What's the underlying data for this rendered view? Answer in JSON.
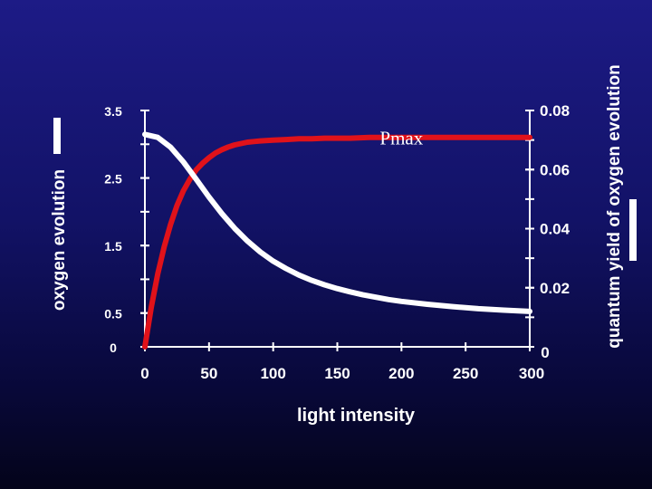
{
  "chart_data": {
    "type": "line",
    "xlabel": "light intensity",
    "ylabel_left": "oxygen evolution",
    "ylabel_right": "quantum yield of oxygen evolution",
    "x_ticks": [
      "0",
      "50",
      "100",
      "150",
      "200",
      "250",
      "300"
    ],
    "xlim": [
      0,
      300
    ],
    "left_ticks": [
      {
        "label": "3.5",
        "value": 3.5
      },
      {
        "label": "2.5",
        "value": 2.5
      },
      {
        "label": "1.5",
        "value": 1.5
      },
      {
        "label": "0.5",
        "value": 0.5
      },
      {
        "label": "0",
        "value": 0
      }
    ],
    "left_ylim": [
      0,
      3.5
    ],
    "right_ticks": [
      {
        "label": "0.08",
        "value": 0.08
      },
      {
        "label": "0.06",
        "value": 0.06
      },
      {
        "label": "0.04",
        "value": 0.04
      },
      {
        "label": "0.02",
        "value": 0.02
      },
      {
        "label": "0",
        "value": 0
      }
    ],
    "right_ylim": [
      0,
      0.08
    ],
    "annotation": {
      "text": "Pmax",
      "x": 200,
      "y": 3.0
    },
    "series": [
      {
        "color": "#e0121a",
        "axis": "left",
        "x": [
          0,
          5,
          10,
          15,
          20,
          25,
          30,
          35,
          40,
          45,
          50,
          55,
          60,
          65,
          70,
          75,
          80,
          85,
          90,
          100,
          110,
          120,
          130,
          140,
          150,
          160,
          175,
          200,
          225,
          250,
          275,
          300
        ],
        "y": [
          0,
          0.59,
          1.08,
          1.48,
          1.81,
          2.09,
          2.31,
          2.48,
          2.62,
          2.72,
          2.8,
          2.87,
          2.92,
          2.96,
          2.99,
          3.01,
          3.03,
          3.04,
          3.05,
          3.06,
          3.07,
          3.08,
          3.08,
          3.09,
          3.09,
          3.09,
          3.1,
          3.1,
          3.1,
          3.1,
          3.1,
          3.1
        ]
      },
      {
        "color": "#ffffff",
        "axis": "right",
        "x": [
          0,
          10,
          20,
          30,
          40,
          50,
          60,
          70,
          80,
          90,
          100,
          110,
          120,
          130,
          140,
          150,
          160,
          170,
          180,
          190,
          200,
          220,
          240,
          260,
          280,
          300
        ],
        "y": [
          0.0719,
          0.0709,
          0.0676,
          0.0626,
          0.0567,
          0.0507,
          0.0451,
          0.0401,
          0.0358,
          0.0321,
          0.029,
          0.0265,
          0.0243,
          0.0225,
          0.021,
          0.0197,
          0.0186,
          0.0176,
          0.0168,
          0.016,
          0.0154,
          0.0144,
          0.0136,
          0.0129,
          0.0124,
          0.012
        ]
      }
    ],
    "grid": false
  }
}
